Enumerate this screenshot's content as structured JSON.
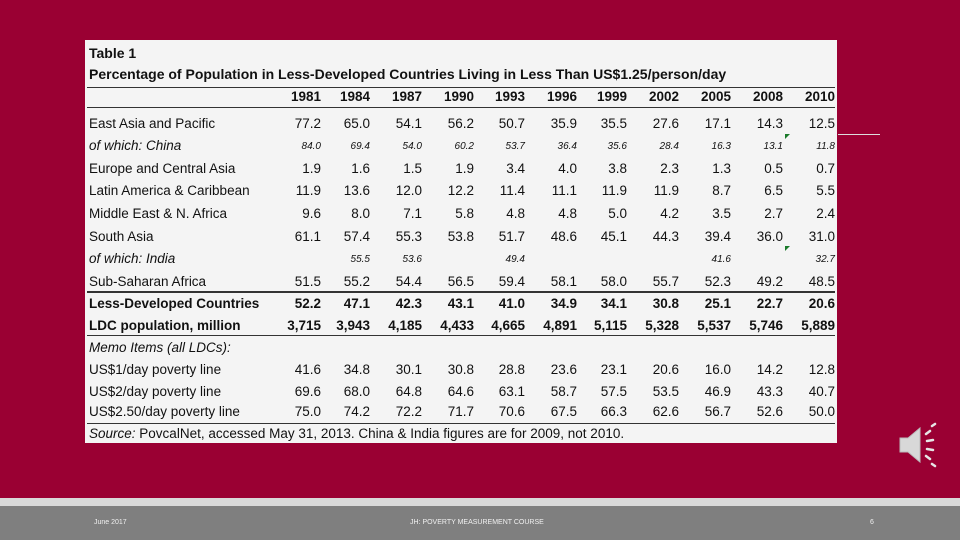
{
  "table": {
    "title": "Table 1",
    "subtitle": "Percentage of Population in Less-Developed Countries Living in Less Than US$1.25/person/day",
    "years": [
      "1981",
      "1984",
      "1987",
      "1990",
      "1993",
      "1996",
      "1999",
      "2002",
      "2005",
      "2008",
      "2010"
    ],
    "rows": [
      {
        "label": "East Asia and Pacific",
        "style": "normal",
        "values": [
          "77.2",
          "65.0",
          "54.1",
          "56.2",
          "50.7",
          "35.9",
          "35.5",
          "27.6",
          "17.1",
          "14.3",
          "12.5"
        ]
      },
      {
        "label": "of which: China",
        "style": "italic",
        "values": [
          "84.0",
          "69.4",
          "54.0",
          "60.2",
          "53.7",
          "36.4",
          "35.6",
          "28.4",
          "16.3",
          "13.1",
          "11.8"
        ]
      },
      {
        "label": "Europe and Central Asia",
        "style": "normal",
        "values": [
          "1.9",
          "1.6",
          "1.5",
          "1.9",
          "3.4",
          "4.0",
          "3.8",
          "2.3",
          "1.3",
          "0.5",
          "0.7"
        ]
      },
      {
        "label": "Latin America & Caribbean",
        "style": "normal",
        "values": [
          "11.9",
          "13.6",
          "12.0",
          "12.2",
          "11.4",
          "11.1",
          "11.9",
          "11.9",
          "8.7",
          "6.5",
          "5.5"
        ]
      },
      {
        "label": "Middle East & N. Africa",
        "style": "normal",
        "values": [
          "9.6",
          "8.0",
          "7.1",
          "5.8",
          "4.8",
          "4.8",
          "5.0",
          "4.2",
          "3.5",
          "2.7",
          "2.4"
        ]
      },
      {
        "label": "South Asia",
        "style": "normal",
        "values": [
          "61.1",
          "57.4",
          "55.3",
          "53.8",
          "51.7",
          "48.6",
          "45.1",
          "44.3",
          "39.4",
          "36.0",
          "31.0"
        ]
      },
      {
        "label": "of which: India",
        "style": "italic",
        "values": [
          "",
          "55.5",
          "53.6",
          "",
          "49.4",
          "",
          "",
          "",
          "41.6",
          "",
          "32.7"
        ]
      },
      {
        "label": "Sub-Saharan Africa",
        "style": "normal",
        "values": [
          "51.5",
          "55.2",
          "54.4",
          "56.5",
          "59.4",
          "58.1",
          "58.0",
          "55.7",
          "52.3",
          "49.2",
          "48.5"
        ]
      },
      {
        "label": "Less-Developed Countries",
        "style": "bold",
        "values": [
          "52.2",
          "47.1",
          "42.3",
          "43.1",
          "41.0",
          "34.9",
          "34.1",
          "30.8",
          "25.1",
          "22.7",
          "20.6"
        ]
      },
      {
        "label": "LDC population, million",
        "style": "bold",
        "values": [
          "3,715",
          "3,943",
          "4,185",
          "4,433",
          "4,665",
          "4,891",
          "5,115",
          "5,328",
          "5,537",
          "5,746",
          "5,889"
        ]
      }
    ],
    "memo_label": "Memo Items (all LDCs):",
    "memo_rows": [
      {
        "label": "US$1/day poverty line",
        "values": [
          "41.6",
          "34.8",
          "30.1",
          "30.8",
          "28.8",
          "23.6",
          "23.1",
          "20.6",
          "16.0",
          "14.2",
          "12.8"
        ]
      },
      {
        "label": "US$2/day poverty line",
        "values": [
          "69.6",
          "68.0",
          "64.8",
          "64.6",
          "63.1",
          "58.7",
          "57.5",
          "53.5",
          "46.9",
          "43.3",
          "40.7"
        ]
      },
      {
        "label": "US$2.50/day poverty line",
        "values": [
          "75.0",
          "74.2",
          "72.2",
          "71.7",
          "70.6",
          "67.5",
          "66.3",
          "62.6",
          "56.7",
          "52.6",
          "50.0"
        ]
      }
    ],
    "source_label": "Source:",
    "source_text": "PovcalNet, accessed May 31, 2013.  China & India figures are for 2009, not 2010."
  },
  "footer": {
    "date": "June 2017",
    "course": "JH: POVERTY MEASUREMENT COURSE",
    "page": "6"
  },
  "colors": {
    "slide_bg": "#9a0033",
    "panel_bg": "#f4f4f4",
    "footer_bg": "#7f7f7f",
    "marker": "#1a7a2a"
  },
  "icons": [
    "speaker-icon"
  ]
}
